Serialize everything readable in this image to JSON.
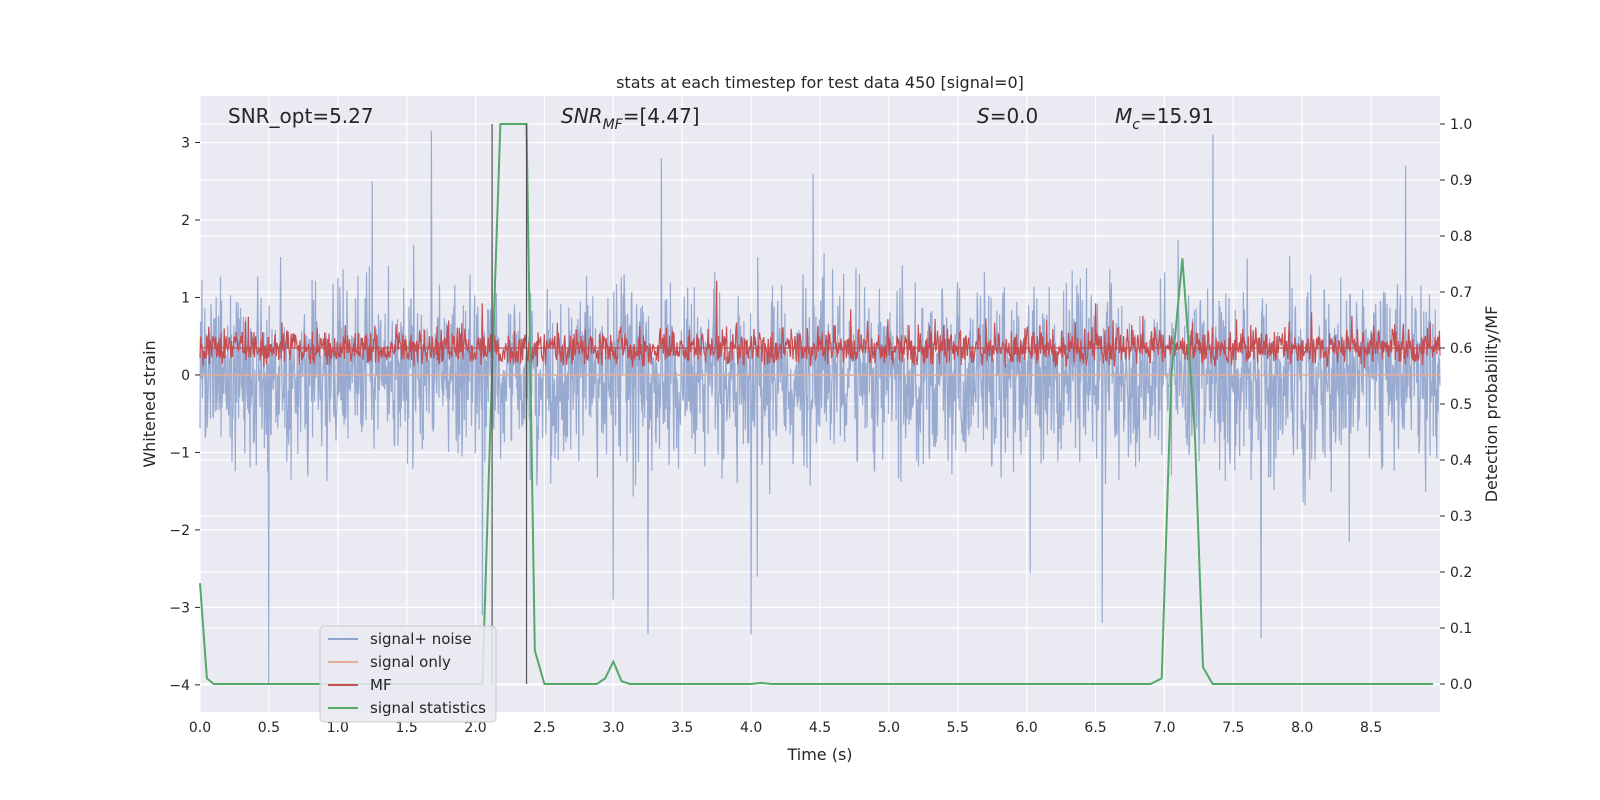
{
  "chart_data": {
    "type": "line",
    "title": "stats at each timestep for test data 450 [signal=0]",
    "xlabel": "Time (s)",
    "ylabel_left": "Whitened strain",
    "ylabel_right": "Detection probability/MF",
    "xlim": [
      0.0,
      9.0
    ],
    "ylim_left": [
      -4.35,
      3.6
    ],
    "ylim_right": [
      -0.05,
      1.05
    ],
    "xticks": [
      "0.0",
      "0.5",
      "1.0",
      "1.5",
      "2.0",
      "2.5",
      "3.0",
      "3.5",
      "4.0",
      "4.5",
      "5.0",
      "5.5",
      "6.0",
      "6.5",
      "7.0",
      "7.5",
      "8.0",
      "8.5"
    ],
    "yticks_left": [
      "3",
      "2",
      "1",
      "0",
      "−1",
      "−2",
      "−3",
      "−4"
    ],
    "yticks_right": [
      "1.0",
      "0.9",
      "0.8",
      "0.7",
      "0.6",
      "0.5",
      "0.4",
      "0.3",
      "0.2",
      "0.1",
      "0.0"
    ],
    "grid": true,
    "legend_position": "lower-left",
    "annotations": {
      "snr_opt": "SNR_opt=5.27",
      "snr_mf_main": "SNR",
      "snr_mf_sub": "MF",
      "snr_mf_rest": "=[4.47]",
      "s_main": "S",
      "s_rest": "=0.0",
      "mc_main": "M",
      "mc_sub": "c",
      "mc_rest": "=15.91"
    },
    "vlines": [
      2.12,
      2.37
    ],
    "series": [
      {
        "name": "signal+ noise",
        "color": "#8fa3cc",
        "axis": "left",
        "style": "noise",
        "mean": 0.0,
        "typical_range": [
          -1.8,
          1.8
        ],
        "peaks": [
          [
            0.5,
            -4.0
          ],
          [
            1.25,
            2.5
          ],
          [
            1.68,
            3.15
          ],
          [
            2.05,
            -3.1
          ],
          [
            3.0,
            -2.9
          ],
          [
            3.25,
            -3.35
          ],
          [
            3.35,
            2.8
          ],
          [
            4.0,
            -3.35
          ],
          [
            4.45,
            2.6
          ],
          [
            6.55,
            -3.2
          ],
          [
            7.35,
            3.1
          ],
          [
            7.7,
            -3.4
          ],
          [
            8.75,
            2.7
          ]
        ]
      },
      {
        "name": "signal only",
        "color": "#e5ae98",
        "axis": "left",
        "style": "flat",
        "value": 0.0
      },
      {
        "name": "MF",
        "color": "#c44e52",
        "axis": "right",
        "style": "noise",
        "baseline": 0.6,
        "typical_range": [
          0.56,
          0.665
        ],
        "peaks": [
          [
            3.75,
            0.72
          ],
          [
            2.05,
            0.68
          ],
          [
            6.5,
            0.68
          ]
        ]
      },
      {
        "name": "signal statistics",
        "color": "#55a868",
        "axis": "right",
        "style": "line",
        "x": [
          0.0,
          0.05,
          0.1,
          2.05,
          2.12,
          2.18,
          2.3,
          2.37,
          2.43,
          2.5,
          2.88,
          2.94,
          3.0,
          3.06,
          3.12,
          3.5,
          4.0,
          4.07,
          4.15,
          6.9,
          6.98,
          7.05,
          7.13,
          7.22,
          7.28,
          7.35,
          8.95
        ],
        "y": [
          0.18,
          0.01,
          0.0,
          0.0,
          0.56,
          1.0,
          1.0,
          1.0,
          0.06,
          0.0,
          0.0,
          0.01,
          0.04,
          0.005,
          0.0,
          0.0,
          0.0,
          0.002,
          0.0,
          0.0,
          0.01,
          0.55,
          0.76,
          0.45,
          0.03,
          0.0,
          0.0
        ]
      }
    ]
  }
}
